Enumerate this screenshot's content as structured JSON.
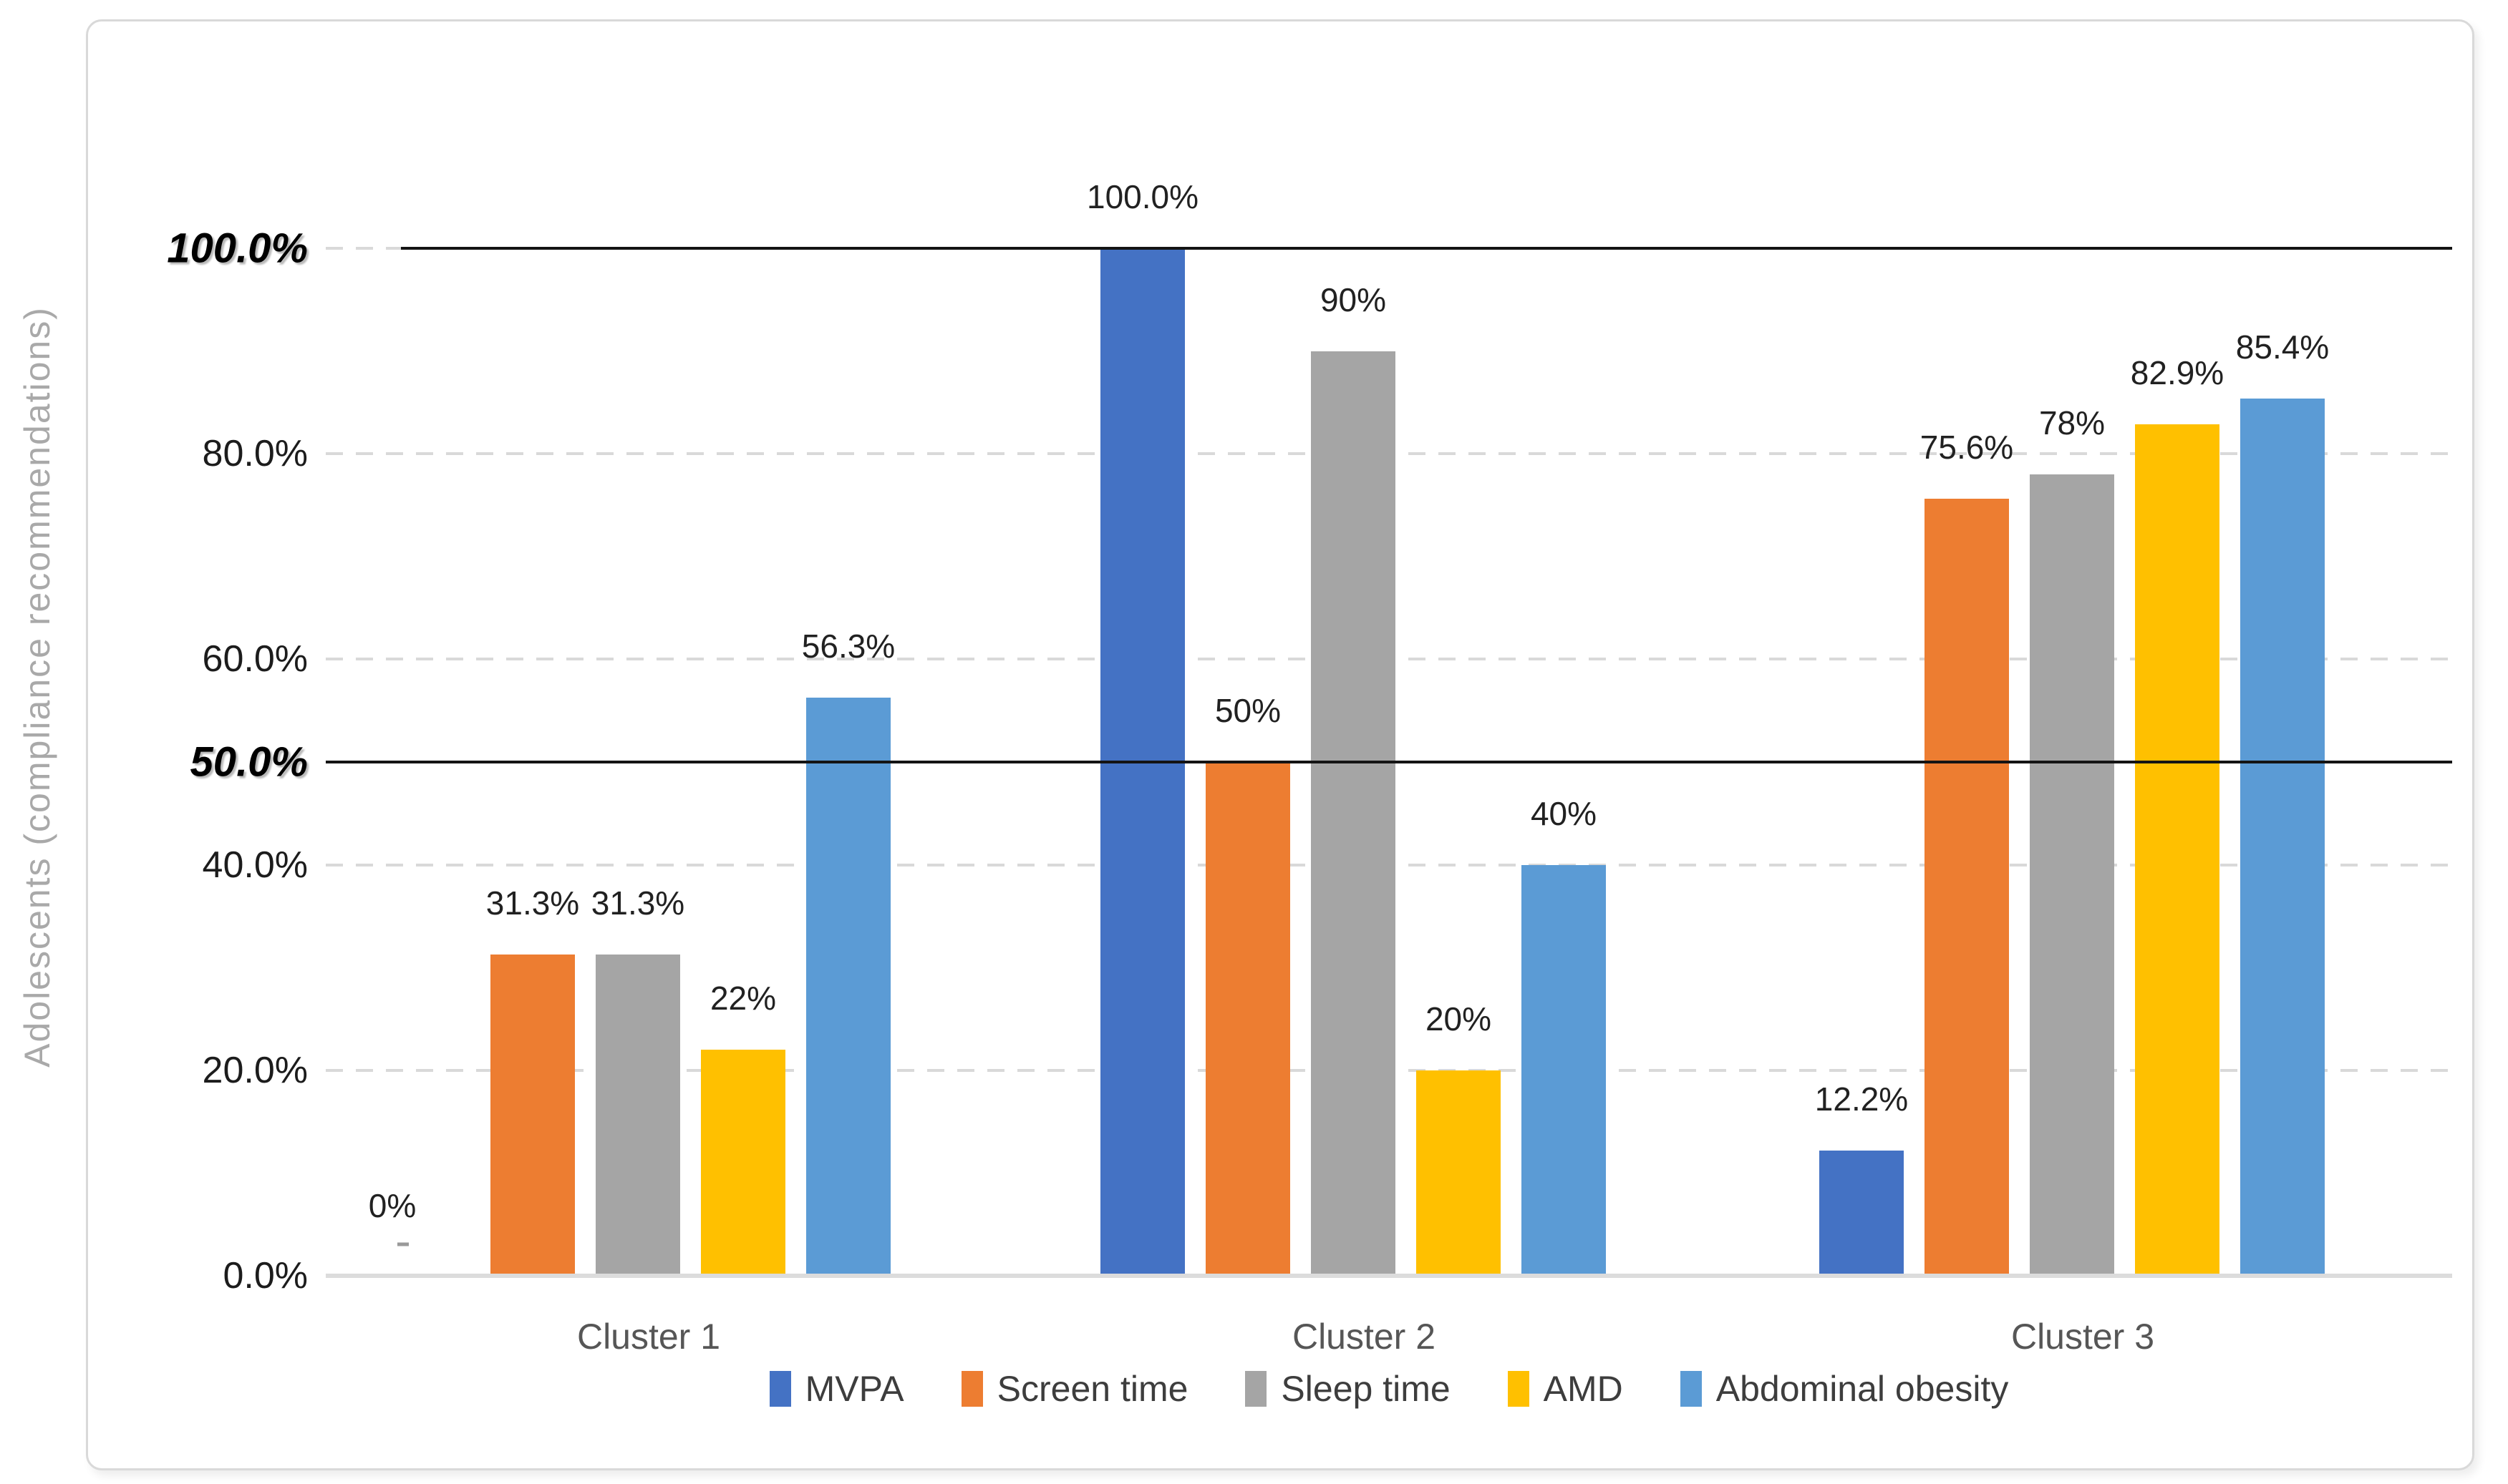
{
  "chart_data": {
    "type": "bar",
    "title": "",
    "xlabel": "",
    "ylabel": "Adolescents (compliance recommendations)",
    "categories": [
      "Cluster 1",
      "Cluster 2",
      "Cluster 3"
    ],
    "series": [
      {
        "name": "MVPA",
        "color": "#4472C4",
        "values": [
          0,
          100,
          12.2
        ],
        "labels": [
          "0%",
          "100.0%",
          "12.2%"
        ]
      },
      {
        "name": "Screen time",
        "color": "#ED7D31",
        "values": [
          31.3,
          50,
          75.6
        ],
        "labels": [
          "31.3%",
          "50%",
          "75.6%"
        ]
      },
      {
        "name": "Sleep time",
        "color": "#A5A5A5",
        "values": [
          31.3,
          90,
          78
        ],
        "labels": [
          "31.3%",
          "90%",
          "78%"
        ]
      },
      {
        "name": "AMD",
        "color": "#FFC000",
        "values": [
          22,
          20,
          82.9
        ],
        "labels": [
          "22%",
          "20%",
          "82.9%"
        ]
      },
      {
        "name": "Abdominal obesity",
        "color": "#5B9BD5",
        "values": [
          56.3,
          40,
          85.4
        ],
        "labels": [
          "56.3%",
          "40%",
          "85.4%"
        ]
      }
    ],
    "y_axis": {
      "range": [
        0,
        110
      ],
      "ticks": [
        {
          "label": "0.0%",
          "value": 0,
          "emphasis": false
        },
        {
          "label": "20.0%",
          "value": 20,
          "emphasis": false
        },
        {
          "label": "40.0%",
          "value": 40,
          "emphasis": false
        },
        {
          "label": "50.0%",
          "value": 50,
          "emphasis": true
        },
        {
          "label": "60.0%",
          "value": 60,
          "emphasis": false
        },
        {
          "label": "80.0%",
          "value": 80,
          "emphasis": false
        },
        {
          "label": "100.0%",
          "value": 100,
          "emphasis": true
        }
      ]
    },
    "gridlines": {
      "values": [
        20,
        40,
        60,
        80,
        100
      ],
      "style": "dashed",
      "color": "#d9d9d9"
    },
    "reference_lines": [
      {
        "value": 50,
        "color": "#141414",
        "style": "solid"
      },
      {
        "value": 100,
        "color": "#141414",
        "style": "solid"
      }
    ],
    "legend": {
      "position": "bottom",
      "entries": [
        "MVPA",
        "Screen time",
        "Sleep time",
        "AMD",
        "Abdominal obesity"
      ]
    },
    "data_labels": true,
    "grid": "on"
  }
}
